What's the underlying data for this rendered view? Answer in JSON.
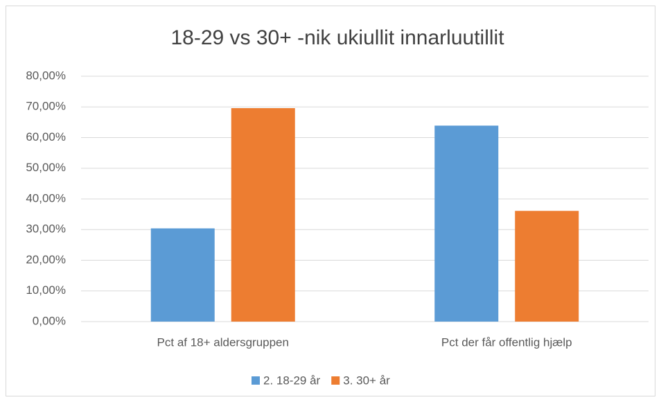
{
  "chart_data": {
    "type": "bar",
    "title": "18-29 vs 30+ -nik ukiullit innarluutillit",
    "categories": [
      "Pct af 18+ aldersgruppen",
      "Pct der får offentlig hjælp"
    ],
    "series": [
      {
        "name": "2. 18-29 år",
        "color": "#5b9bd5",
        "values": [
          30.4,
          63.9
        ]
      },
      {
        "name": "3. 30+ år",
        "color": "#ed7d31",
        "values": [
          69.6,
          36.1
        ]
      }
    ],
    "ylim": [
      0,
      80
    ],
    "yticks": [
      {
        "value": 0,
        "label": "0,00%"
      },
      {
        "value": 10,
        "label": "10,00%"
      },
      {
        "value": 20,
        "label": "20,00%"
      },
      {
        "value": 30,
        "label": "30,00%"
      },
      {
        "value": 40,
        "label": "40,00%"
      },
      {
        "value": 50,
        "label": "50,00%"
      },
      {
        "value": 60,
        "label": "60,00%"
      },
      {
        "value": 70,
        "label": "70,00%"
      },
      {
        "value": 80,
        "label": "80,00%"
      }
    ],
    "grid": true,
    "legend": "bottom"
  }
}
